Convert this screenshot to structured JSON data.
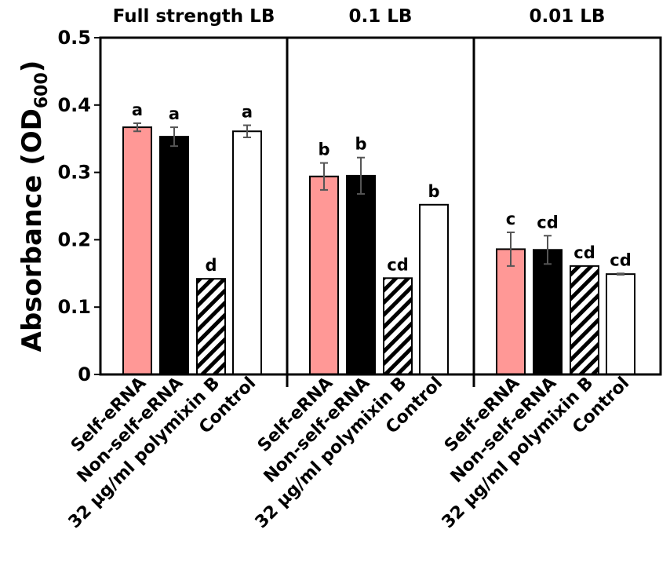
{
  "chart_data": {
    "type": "bar",
    "ylabel": "Absorbance (OD600)",
    "ylabel_main": "Absorbance (OD",
    "ylabel_sub": "600",
    "ylabel_close": ")",
    "ylim": [
      0,
      0.5
    ],
    "yticks": [
      {
        "value": 0,
        "label": "0"
      },
      {
        "value": 0.1,
        "label": "0.1"
      },
      {
        "value": 0.2,
        "label": "0.2"
      },
      {
        "value": 0.3,
        "label": "0.3"
      },
      {
        "value": 0.4,
        "label": "0.4"
      },
      {
        "value": 0.5,
        "label": "0.5"
      }
    ],
    "categories": [
      "Self-eRNA",
      "Non-self-eRNA",
      "32 µg/ml polymixin B",
      "Control"
    ],
    "series_styles": [
      {
        "name": "Self-eRNA",
        "fill": "#ff9896",
        "pattern": "solid"
      },
      {
        "name": "Non-self-eRNA",
        "fill": "#000000",
        "pattern": "solid"
      },
      {
        "name": "32 µg/ml polymixin B",
        "fill": "#ffffff",
        "pattern": "diagonal-hatch"
      },
      {
        "name": "Control",
        "fill": "#ffffff",
        "pattern": "solid"
      }
    ],
    "groups": [
      {
        "title": "Full strength LB",
        "values": [
          0.367,
          0.353,
          0.142,
          0.361
        ],
        "errors": [
          0.006,
          0.014,
          0.0,
          0.009
        ],
        "sig": [
          "a",
          "a",
          "d",
          "a"
        ]
      },
      {
        "title": "0.1 LB",
        "values": [
          0.294,
          0.295,
          0.143,
          0.252
        ],
        "errors": [
          0.02,
          0.027,
          0.0,
          0.0
        ],
        "sig": [
          "b",
          "b",
          "cd",
          "b"
        ]
      },
      {
        "title": "0.01 LB",
        "values": [
          0.186,
          0.185,
          0.161,
          0.149
        ],
        "errors": [
          0.025,
          0.021,
          0.0,
          0.001
        ],
        "sig": [
          "c",
          "cd",
          "cd",
          "cd"
        ]
      }
    ]
  }
}
